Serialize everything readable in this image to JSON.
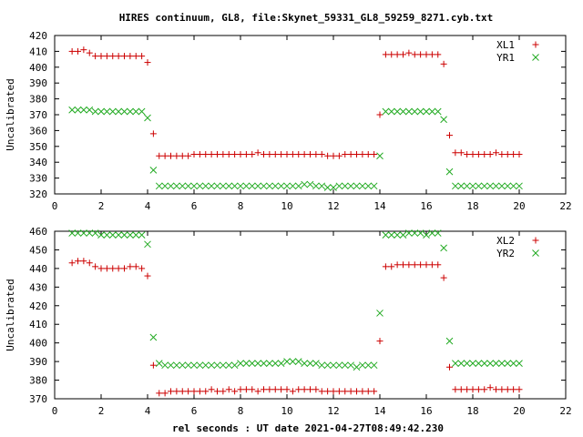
{
  "page_title": "HIRES continuum, GL8, file:Skynet_59331_GL8_59259_8271.cyb.txt",
  "x_axis_label": "rel seconds : UT date 2021-04-27T08:49:42.230",
  "colors": {
    "red": "#cc0000",
    "green": "#22aa22"
  },
  "chart_data": [
    {
      "type": "scatter",
      "ylabel": "Uncalibrated",
      "xlim": [
        0,
        22
      ],
      "ylim": [
        320,
        420
      ],
      "xticks": [
        0,
        2,
        4,
        6,
        8,
        10,
        12,
        14,
        16,
        18,
        20,
        22
      ],
      "yticks": [
        320,
        330,
        340,
        350,
        360,
        370,
        380,
        390,
        400,
        410,
        420
      ],
      "grid": false,
      "legend": "top-right",
      "series": [
        {
          "name": "XL1",
          "marker": "plus",
          "color": "#cc0000",
          "x": [
            0.75,
            1.0,
            1.25,
            1.5,
            1.75,
            2.0,
            2.25,
            2.5,
            2.75,
            3.0,
            3.25,
            3.5,
            3.75,
            4.0,
            4.25,
            4.5,
            4.75,
            5.0,
            5.25,
            5.5,
            5.75,
            6.0,
            6.25,
            6.5,
            6.75,
            7.0,
            7.25,
            7.5,
            7.75,
            8.0,
            8.25,
            8.5,
            8.75,
            9.0,
            9.25,
            9.5,
            9.75,
            10.0,
            10.25,
            10.5,
            10.75,
            11.0,
            11.25,
            11.5,
            11.75,
            12.0,
            12.25,
            12.5,
            12.75,
            13.0,
            13.25,
            13.5,
            13.75,
            14.0,
            14.25,
            14.5,
            14.75,
            15.0,
            15.25,
            15.5,
            15.75,
            16.0,
            16.25,
            16.5,
            16.75,
            17.0,
            17.25,
            17.5,
            17.75,
            18.0,
            18.25,
            18.5,
            18.75,
            19.0,
            19.25,
            19.5,
            19.75,
            20.0
          ],
          "y": [
            410,
            410,
            411,
            409,
            407,
            407,
            407,
            407,
            407,
            407,
            407,
            407,
            407,
            403,
            358,
            344,
            344,
            344,
            344,
            344,
            344,
            345,
            345,
            345,
            345,
            345,
            345,
            345,
            345,
            345,
            345,
            345,
            346,
            345,
            345,
            345,
            345,
            345,
            345,
            345,
            345,
            345,
            345,
            345,
            344,
            344,
            344,
            345,
            345,
            345,
            345,
            345,
            345,
            370,
            408,
            408,
            408,
            408,
            409,
            408,
            408,
            408,
            408,
            408,
            402,
            357,
            346,
            346,
            345,
            345,
            345,
            345,
            345,
            346,
            345,
            345,
            345,
            345
          ]
        },
        {
          "name": "YR1",
          "marker": "cross",
          "color": "#22aa22",
          "x": [
            0.75,
            1.0,
            1.25,
            1.5,
            1.75,
            2.0,
            2.25,
            2.5,
            2.75,
            3.0,
            3.25,
            3.5,
            3.75,
            4.0,
            4.25,
            4.5,
            4.75,
            5.0,
            5.25,
            5.5,
            5.75,
            6.0,
            6.25,
            6.5,
            6.75,
            7.0,
            7.25,
            7.5,
            7.75,
            8.0,
            8.25,
            8.5,
            8.75,
            9.0,
            9.25,
            9.5,
            9.75,
            10.0,
            10.25,
            10.5,
            10.75,
            11.0,
            11.25,
            11.5,
            11.75,
            12.0,
            12.25,
            12.5,
            12.75,
            13.0,
            13.25,
            13.5,
            13.75,
            14.0,
            14.25,
            14.5,
            14.75,
            15.0,
            15.25,
            15.5,
            15.75,
            16.0,
            16.25,
            16.5,
            16.75,
            17.0,
            17.25,
            17.5,
            17.75,
            18.0,
            18.25,
            18.5,
            18.75,
            19.0,
            19.25,
            19.5,
            19.75,
            20.0
          ],
          "y": [
            373,
            373,
            373,
            373,
            372,
            372,
            372,
            372,
            372,
            372,
            372,
            372,
            372,
            368,
            335,
            325,
            325,
            325,
            325,
            325,
            325,
            325,
            325,
            325,
            325,
            325,
            325,
            325,
            325,
            325,
            325,
            325,
            325,
            325,
            325,
            325,
            325,
            325,
            325,
            325,
            326,
            326,
            325,
            325,
            324,
            324,
            325,
            325,
            325,
            325,
            325,
            325,
            325,
            344,
            372,
            372,
            372,
            372,
            372,
            372,
            372,
            372,
            372,
            372,
            367,
            334,
            325,
            325,
            325,
            325,
            325,
            325,
            325,
            325,
            325,
            325,
            325,
            325
          ]
        }
      ]
    },
    {
      "type": "scatter",
      "ylabel": "Uncalibrated",
      "xlabel": "rel seconds : UT date 2021-04-27T08:49:42.230",
      "xlim": [
        0,
        22
      ],
      "ylim": [
        370,
        460
      ],
      "xticks": [
        0,
        2,
        4,
        6,
        8,
        10,
        12,
        14,
        16,
        18,
        20,
        22
      ],
      "yticks": [
        370,
        380,
        390,
        400,
        410,
        420,
        430,
        440,
        450,
        460
      ],
      "grid": false,
      "legend": "top-right",
      "series": [
        {
          "name": "XL2",
          "marker": "plus",
          "color": "#cc0000",
          "x": [
            0.75,
            1.0,
            1.25,
            1.5,
            1.75,
            2.0,
            2.25,
            2.5,
            2.75,
            3.0,
            3.25,
            3.5,
            3.75,
            4.0,
            4.25,
            4.5,
            4.75,
            5.0,
            5.25,
            5.5,
            5.75,
            6.0,
            6.25,
            6.5,
            6.75,
            7.0,
            7.25,
            7.5,
            7.75,
            8.0,
            8.25,
            8.5,
            8.75,
            9.0,
            9.25,
            9.5,
            9.75,
            10.0,
            10.25,
            10.5,
            10.75,
            11.0,
            11.25,
            11.5,
            11.75,
            12.0,
            12.25,
            12.5,
            12.75,
            13.0,
            13.25,
            13.5,
            13.75,
            14.0,
            14.25,
            14.5,
            14.75,
            15.0,
            15.25,
            15.5,
            15.75,
            16.0,
            16.25,
            16.5,
            16.75,
            17.0,
            17.25,
            17.5,
            17.75,
            18.0,
            18.25,
            18.5,
            18.75,
            19.0,
            19.25,
            19.5,
            19.75,
            20.0
          ],
          "y": [
            443,
            444,
            444,
            443,
            441,
            440,
            440,
            440,
            440,
            440,
            441,
            441,
            440,
            436,
            388,
            373,
            373,
            374,
            374,
            374,
            374,
            374,
            374,
            374,
            375,
            374,
            374,
            375,
            374,
            375,
            375,
            375,
            374,
            375,
            375,
            375,
            375,
            375,
            374,
            375,
            375,
            375,
            375,
            374,
            374,
            374,
            374,
            374,
            374,
            374,
            374,
            374,
            374,
            401,
            441,
            441,
            442,
            442,
            442,
            442,
            442,
            442,
            442,
            442,
            435,
            387,
            375,
            375,
            375,
            375,
            375,
            375,
            376,
            375,
            375,
            375,
            375,
            375
          ]
        },
        {
          "name": "YR2",
          "marker": "cross",
          "color": "#22aa22",
          "x": [
            0.75,
            1.0,
            1.25,
            1.5,
            1.75,
            2.0,
            2.25,
            2.5,
            2.75,
            3.0,
            3.25,
            3.5,
            3.75,
            4.0,
            4.25,
            4.5,
            4.75,
            5.0,
            5.25,
            5.5,
            5.75,
            6.0,
            6.25,
            6.5,
            6.75,
            7.0,
            7.25,
            7.5,
            7.75,
            8.0,
            8.25,
            8.5,
            8.75,
            9.0,
            9.25,
            9.5,
            9.75,
            10.0,
            10.25,
            10.5,
            10.75,
            11.0,
            11.25,
            11.5,
            11.75,
            12.0,
            12.25,
            12.5,
            12.75,
            13.0,
            13.25,
            13.5,
            13.75,
            14.0,
            14.25,
            14.5,
            14.75,
            15.0,
            15.25,
            15.5,
            15.75,
            16.0,
            16.25,
            16.5,
            16.75,
            17.0,
            17.25,
            17.5,
            17.75,
            18.0,
            18.25,
            18.5,
            18.75,
            19.0,
            19.25,
            19.5,
            19.75,
            20.0
          ],
          "y": [
            459,
            459,
            459,
            459,
            459,
            458,
            458,
            458,
            458,
            458,
            458,
            458,
            458,
            453,
            403,
            389,
            388,
            388,
            388,
            388,
            388,
            388,
            388,
            388,
            388,
            388,
            388,
            388,
            388,
            389,
            389,
            389,
            389,
            389,
            389,
            389,
            389,
            390,
            390,
            390,
            389,
            389,
            389,
            388,
            388,
            388,
            388,
            388,
            388,
            387,
            388,
            388,
            388,
            416,
            458,
            458,
            458,
            458,
            459,
            459,
            459,
            458,
            459,
            459,
            451,
            401,
            389,
            389,
            389,
            389,
            389,
            389,
            389,
            389,
            389,
            389,
            389,
            389
          ]
        }
      ]
    }
  ]
}
